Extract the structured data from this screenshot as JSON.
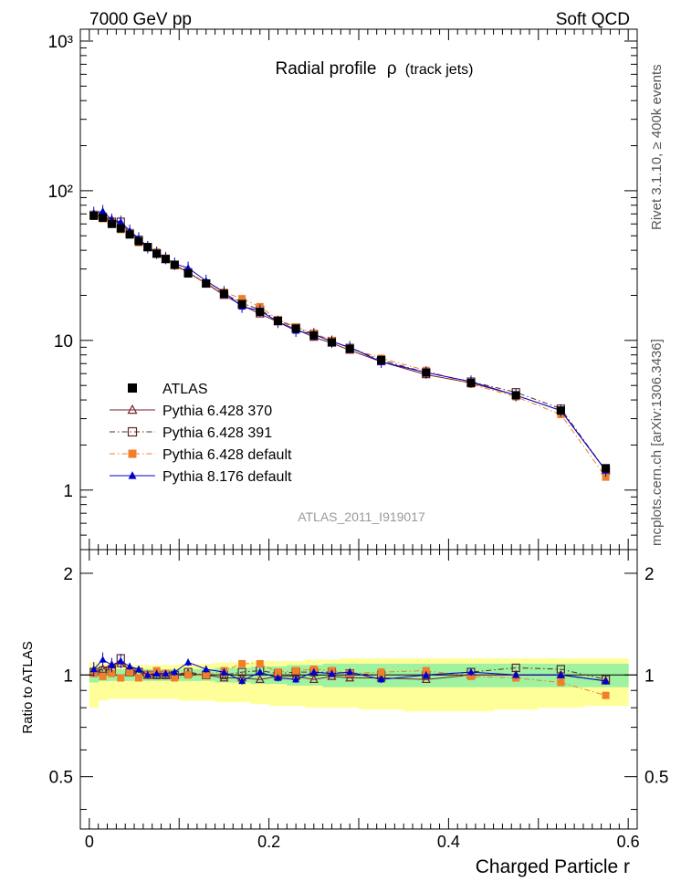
{
  "header": {
    "left_label": "7000 GeV pp",
    "right_label": "Soft QCD"
  },
  "side_labels": {
    "rivet": "Rivet 3.1.10, ≥ 400k events",
    "mcplots": "mcplots.cern.ch [arXiv:1306.3436]"
  },
  "chart_data": [
    {
      "type": "scatter",
      "panel": "main",
      "title_main": "Radial profile",
      "title_symbol": "ρ",
      "title_suffix": "(track jets)",
      "watermark": "ATLAS_2011_I919017",
      "xlim": [
        -0.01,
        0.61
      ],
      "ylim": [
        0.4,
        1200
      ],
      "yscale": "log",
      "y_tick_labels": [
        "10³",
        "10²",
        "10",
        "1"
      ],
      "y_tick_values": [
        1000,
        100,
        10,
        1
      ],
      "legend_position": "lower-left",
      "x": [
        0.005,
        0.015,
        0.025,
        0.035,
        0.045,
        0.055,
        0.065,
        0.075,
        0.085,
        0.095,
        0.11,
        0.13,
        0.15,
        0.17,
        0.19,
        0.21,
        0.23,
        0.25,
        0.27,
        0.29,
        0.325,
        0.375,
        0.425,
        0.475,
        0.525,
        0.575
      ],
      "series": [
        {
          "name": "ATLAS",
          "color": "#000000",
          "marker": "filled-square",
          "values": [
            68,
            66,
            60,
            56,
            51,
            46,
            42,
            38,
            35,
            32,
            28,
            24,
            20.5,
            17.5,
            15.5,
            13.5,
            12,
            10.8,
            9.7,
            8.8,
            7.4,
            6.1,
            5.2,
            4.3,
            3.4,
            1.4
          ]
        },
        {
          "name": "Pythia 6.428 370",
          "color": "#7a1f2b",
          "marker": "open-triangle",
          "line": "solid",
          "values": [
            69,
            68,
            64,
            60,
            53,
            47,
            42,
            38,
            35,
            32,
            28.5,
            24,
            20,
            17.2,
            15,
            13.3,
            11.9,
            10.5,
            9.6,
            8.6,
            7.2,
            5.9,
            5.2,
            4.3,
            3.4,
            1.35
          ]
        },
        {
          "name": "Pythia 6.428 391",
          "color": "#5a2a2a",
          "marker": "open-square",
          "line": "dash-dot",
          "values": [
            69,
            67,
            62,
            62,
            52,
            47,
            42,
            38,
            35,
            32,
            28.5,
            24,
            20.5,
            17.8,
            16,
            13.6,
            12.2,
            11,
            9.9,
            8.9,
            7.4,
            6.1,
            5.3,
            4.5,
            3.5,
            1.35
          ]
        },
        {
          "name": "Pythia 6.428 default",
          "color": "#f07f2a",
          "marker": "filled-square",
          "line": "dash-dot",
          "values": [
            69,
            65,
            61,
            55,
            52,
            45,
            42,
            39,
            35.5,
            31.5,
            28,
            24,
            21,
            19,
            16.8,
            13.8,
            12.3,
            11.2,
            10,
            8.9,
            7.6,
            6.3,
            5.1,
            4.2,
            3.2,
            1.22
          ]
        },
        {
          "name": "Pythia 8.176 default",
          "color": "#0000cc",
          "marker": "filled-triangle",
          "line": "solid",
          "values": [
            71,
            73,
            64,
            62,
            54,
            48,
            42,
            38.5,
            35.5,
            32.5,
            30.5,
            25,
            21,
            16.8,
            15.8,
            13.3,
            11.6,
            11,
            9.8,
            9,
            7.2,
            6.1,
            5.3,
            4.3,
            3.4,
            1.35
          ]
        }
      ]
    },
    {
      "type": "scatter",
      "panel": "ratio",
      "ylabel": "Ratio to ATLAS",
      "xlabel": "Charged Particle r",
      "xlim": [
        -0.01,
        0.61
      ],
      "ylim": [
        0.35,
        2.35
      ],
      "yscale": "log",
      "x_tick_labels": [
        "0",
        "0.2",
        "0.4",
        "0.6"
      ],
      "x_tick_values": [
        0,
        0.2,
        0.4,
        0.6
      ],
      "y_tick_labels": [
        "2",
        "1",
        "0.5"
      ],
      "y_tick_values": [
        2,
        1,
        0.5
      ],
      "bands": {
        "x_edges": [
          0,
          0.01,
          0.02,
          0.03,
          0.04,
          0.05,
          0.06,
          0.07,
          0.08,
          0.09,
          0.1,
          0.12,
          0.14,
          0.16,
          0.18,
          0.2,
          0.22,
          0.24,
          0.26,
          0.28,
          0.3,
          0.35,
          0.4,
          0.45,
          0.5,
          0.55,
          0.6
        ],
        "stat_color": "#9ff29f",
        "stat_low": [
          0.95,
          0.96,
          0.96,
          0.96,
          0.96,
          0.96,
          0.96,
          0.96,
          0.96,
          0.96,
          0.96,
          0.96,
          0.95,
          0.95,
          0.94,
          0.94,
          0.93,
          0.93,
          0.92,
          0.92,
          0.92,
          0.92,
          0.92,
          0.92,
          0.92,
          0.92
        ],
        "stat_high": [
          1.05,
          1.04,
          1.04,
          1.04,
          1.04,
          1.04,
          1.04,
          1.04,
          1.04,
          1.04,
          1.04,
          1.04,
          1.05,
          1.05,
          1.06,
          1.06,
          1.07,
          1.07,
          1.08,
          1.08,
          1.08,
          1.08,
          1.08,
          1.08,
          1.08,
          1.08
        ],
        "syst_color": "#ffff99",
        "syst_low": [
          0.8,
          0.84,
          0.85,
          0.85,
          0.85,
          0.85,
          0.85,
          0.85,
          0.85,
          0.85,
          0.84,
          0.84,
          0.83,
          0.83,
          0.82,
          0.81,
          0.81,
          0.8,
          0.8,
          0.8,
          0.79,
          0.78,
          0.78,
          0.79,
          0.8,
          0.81
        ],
        "syst_high": [
          1.09,
          1.08,
          1.07,
          1.07,
          1.07,
          1.07,
          1.07,
          1.07,
          1.07,
          1.07,
          1.08,
          1.08,
          1.09,
          1.09,
          1.1,
          1.1,
          1.1,
          1.11,
          1.11,
          1.12,
          1.12,
          1.12,
          1.12,
          1.12,
          1.12,
          1.12
        ]
      },
      "x": [
        0.005,
        0.015,
        0.025,
        0.035,
        0.045,
        0.055,
        0.065,
        0.075,
        0.085,
        0.095,
        0.11,
        0.13,
        0.15,
        0.17,
        0.19,
        0.21,
        0.23,
        0.25,
        0.27,
        0.29,
        0.325,
        0.375,
        0.425,
        0.475,
        0.525,
        0.575
      ],
      "series": [
        {
          "name": "Pythia 6.428 370",
          "color": "#7a1f2b",
          "marker": "open-triangle",
          "line": "solid",
          "values": [
            1.02,
            1.04,
            1.07,
            1.08,
            1.04,
            1.02,
            1.0,
            1.0,
            1.0,
            1.0,
            1.01,
            1.0,
            0.98,
            0.98,
            0.97,
            0.99,
            0.99,
            0.97,
            0.99,
            0.98,
            0.98,
            0.97,
            1.0,
            1.0,
            1.0,
            0.96
          ]
        },
        {
          "name": "Pythia 6.428 391",
          "color": "#5a2a2a",
          "marker": "open-square",
          "line": "dash-dot",
          "values": [
            1.02,
            1.03,
            1.04,
            1.12,
            1.02,
            1.02,
            1.0,
            1.0,
            1.0,
            1.0,
            1.02,
            1.0,
            1.0,
            1.02,
            1.03,
            1.01,
            1.02,
            1.02,
            1.02,
            1.01,
            1.0,
            1.0,
            1.02,
            1.05,
            1.04,
            0.97
          ]
        },
        {
          "name": "Pythia 6.428 default",
          "color": "#f07f2a",
          "marker": "filled-square",
          "line": "dash-dot",
          "values": [
            1.01,
            0.99,
            1.01,
            0.98,
            1.02,
            0.98,
            1.0,
            1.03,
            1.01,
            0.98,
            1.0,
            1.0,
            1.03,
            1.08,
            1.08,
            1.02,
            1.03,
            1.04,
            1.03,
            1.01,
            1.02,
            1.03,
            0.99,
            0.98,
            0.95,
            0.87
          ]
        },
        {
          "name": "Pythia 8.176 default",
          "color": "#0000cc",
          "marker": "filled-triangle",
          "line": "solid",
          "values": [
            1.04,
            1.11,
            1.07,
            1.1,
            1.06,
            1.04,
            1.0,
            1.01,
            1.01,
            1.02,
            1.09,
            1.04,
            1.02,
            0.96,
            1.02,
            0.98,
            0.97,
            1.02,
            1.01,
            1.02,
            0.97,
            1.0,
            1.02,
            1.0,
            1.0,
            0.96
          ]
        }
      ]
    }
  ]
}
